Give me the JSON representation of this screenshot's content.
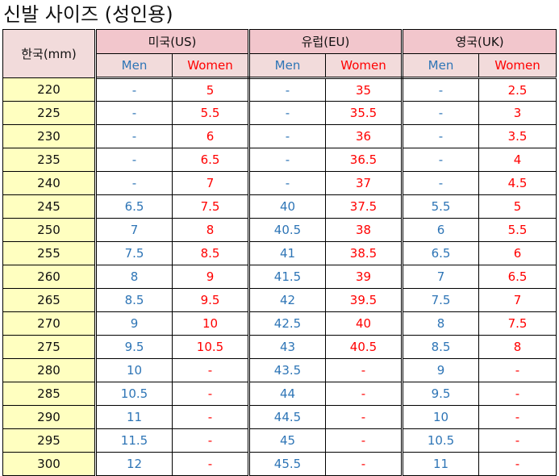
{
  "title": "신발 사이즈 (성인용)",
  "header": {
    "korea": "한국(mm)",
    "regions": [
      {
        "label": "미국(US)"
      },
      {
        "label": "유럽(EU)"
      },
      {
        "label": "영국(UK)"
      }
    ],
    "men": "Men",
    "women": "Women"
  },
  "colors": {
    "men": "#2e75b6",
    "women": "#ff0000",
    "korea_column_bg": "#ffffc0",
    "header_bg": "#f2c6cc"
  },
  "rows": [
    {
      "kr": "220",
      "us_men": "-",
      "us_women": "5",
      "eu_men": "-",
      "eu_women": "35",
      "uk_men": "-",
      "uk_women": "2.5"
    },
    {
      "kr": "225",
      "us_men": "-",
      "us_women": "5.5",
      "eu_men": "-",
      "eu_women": "35.5",
      "uk_men": "-",
      "uk_women": "3"
    },
    {
      "kr": "230",
      "us_men": "-",
      "us_women": "6",
      "eu_men": "-",
      "eu_women": "36",
      "uk_men": "-",
      "uk_women": "3.5"
    },
    {
      "kr": "235",
      "us_men": "-",
      "us_women": "6.5",
      "eu_men": "-",
      "eu_women": "36.5",
      "uk_men": "-",
      "uk_women": "4"
    },
    {
      "kr": "240",
      "us_men": "-",
      "us_women": "7",
      "eu_men": "-",
      "eu_women": "37",
      "uk_men": "-",
      "uk_women": "4.5"
    },
    {
      "kr": "245",
      "us_men": "6.5",
      "us_women": "7.5",
      "eu_men": "40",
      "eu_women": "37.5",
      "uk_men": "5.5",
      "uk_women": "5"
    },
    {
      "kr": "250",
      "us_men": "7",
      "us_women": "8",
      "eu_men": "40.5",
      "eu_women": "38",
      "uk_men": "6",
      "uk_women": "5.5"
    },
    {
      "kr": "255",
      "us_men": "7.5",
      "us_women": "8.5",
      "eu_men": "41",
      "eu_women": "38.5",
      "uk_men": "6.5",
      "uk_women": "6"
    },
    {
      "kr": "260",
      "us_men": "8",
      "us_women": "9",
      "eu_men": "41.5",
      "eu_women": "39",
      "uk_men": "7",
      "uk_women": "6.5"
    },
    {
      "kr": "265",
      "us_men": "8.5",
      "us_women": "9.5",
      "eu_men": "42",
      "eu_women": "39.5",
      "uk_men": "7.5",
      "uk_women": "7"
    },
    {
      "kr": "270",
      "us_men": "9",
      "us_women": "10",
      "eu_men": "42.5",
      "eu_women": "40",
      "uk_men": "8",
      "uk_women": "7.5"
    },
    {
      "kr": "275",
      "us_men": "9.5",
      "us_women": "10.5",
      "eu_men": "43",
      "eu_women": "40.5",
      "uk_men": "8.5",
      "uk_women": "8"
    },
    {
      "kr": "280",
      "us_men": "10",
      "us_women": "-",
      "eu_men": "43.5",
      "eu_women": "-",
      "uk_men": "9",
      "uk_women": "-"
    },
    {
      "kr": "285",
      "us_men": "10.5",
      "us_women": "-",
      "eu_men": "44",
      "eu_women": "-",
      "uk_men": "9.5",
      "uk_women": "-"
    },
    {
      "kr": "290",
      "us_men": "11",
      "us_women": "-",
      "eu_men": "44.5",
      "eu_women": "-",
      "uk_men": "10",
      "uk_women": "-"
    },
    {
      "kr": "295",
      "us_men": "11.5",
      "us_women": "-",
      "eu_men": "45",
      "eu_women": "-",
      "uk_men": "10.5",
      "uk_women": "-"
    },
    {
      "kr": "300",
      "us_men": "12",
      "us_women": "-",
      "eu_men": "45.5",
      "eu_women": "-",
      "uk_men": "11",
      "uk_women": "-"
    }
  ]
}
